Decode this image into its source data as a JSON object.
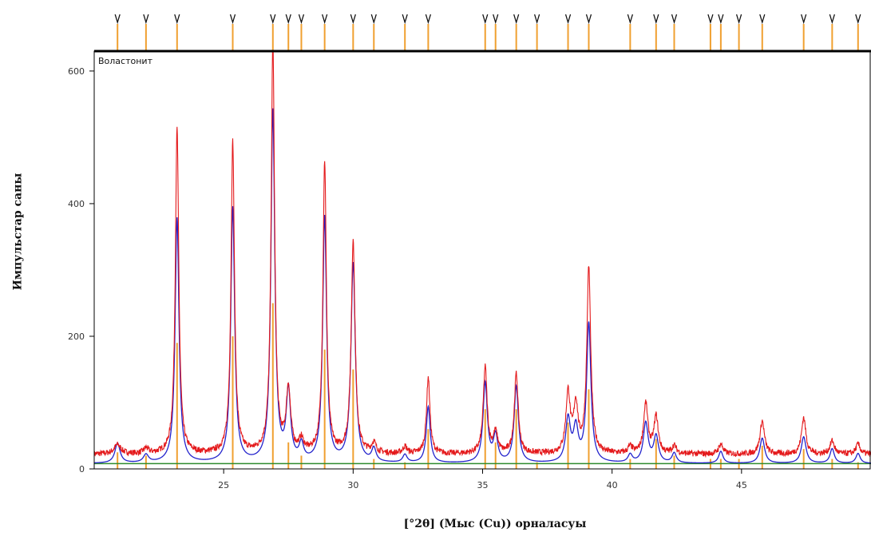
{
  "chart_data": {
    "type": "line",
    "title": "",
    "xlabel": "[°2θ] (Мыс (Cu)) орналасуы",
    "ylabel": "Импульстар саны",
    "phase_label": "Воластонит",
    "xlim": [
      20,
      50
    ],
    "ylim": [
      0,
      630
    ],
    "x_ticks": [
      25,
      30,
      35,
      40,
      45
    ],
    "y_ticks": [
      0,
      200,
      400,
      600
    ],
    "grid": false,
    "colors": {
      "observed": "#e41a1c",
      "calculated": "#2222cc",
      "background": "#2e8b2e",
      "reference_lines": "#f0a030",
      "frame": "#000000"
    },
    "series": [
      {
        "role": "observed",
        "background_level": 22,
        "peaks": [
          [
            20.9,
            14,
            0.15
          ],
          [
            22.0,
            8,
            0.1
          ],
          [
            23.2,
            490,
            0.08
          ],
          [
            25.35,
            470,
            0.08
          ],
          [
            26.9,
            620,
            0.08
          ],
          [
            27.5,
            95,
            0.1
          ],
          [
            28.0,
            18,
            0.1
          ],
          [
            28.9,
            440,
            0.08
          ],
          [
            30.0,
            320,
            0.09
          ],
          [
            30.8,
            15,
            0.1
          ],
          [
            32.0,
            10,
            0.1
          ],
          [
            32.9,
            115,
            0.08
          ],
          [
            35.1,
            130,
            0.09
          ],
          [
            35.5,
            30,
            0.1
          ],
          [
            36.3,
            120,
            0.09
          ],
          [
            38.3,
            90,
            0.1
          ],
          [
            38.6,
            70,
            0.1
          ],
          [
            39.1,
            280,
            0.09
          ],
          [
            40.7,
            10,
            0.1
          ],
          [
            41.3,
            75,
            0.1
          ],
          [
            41.7,
            55,
            0.1
          ],
          [
            42.4,
            12,
            0.1
          ],
          [
            44.2,
            15,
            0.1
          ],
          [
            45.8,
            50,
            0.1
          ],
          [
            47.4,
            55,
            0.1
          ],
          [
            48.5,
            20,
            0.1
          ],
          [
            49.5,
            15,
            0.1
          ]
        ]
      },
      {
        "role": "calculated",
        "background_level": 8,
        "peaks": [
          [
            20.9,
            30,
            0.12
          ],
          [
            22.0,
            12,
            0.12
          ],
          [
            23.2,
            370,
            0.09
          ],
          [
            25.35,
            385,
            0.09
          ],
          [
            26.9,
            530,
            0.09
          ],
          [
            27.5,
            105,
            0.1
          ],
          [
            28.0,
            25,
            0.1
          ],
          [
            28.9,
            370,
            0.09
          ],
          [
            30.0,
            300,
            0.1
          ],
          [
            30.8,
            20,
            0.1
          ],
          [
            32.0,
            12,
            0.1
          ],
          [
            32.9,
            85,
            0.09
          ],
          [
            35.1,
            120,
            0.1
          ],
          [
            35.5,
            40,
            0.1
          ],
          [
            36.3,
            115,
            0.1
          ],
          [
            38.3,
            65,
            0.11
          ],
          [
            38.6,
            50,
            0.11
          ],
          [
            39.1,
            210,
            0.1
          ],
          [
            40.7,
            12,
            0.1
          ],
          [
            41.3,
            60,
            0.11
          ],
          [
            41.7,
            40,
            0.11
          ],
          [
            42.4,
            15,
            0.1
          ],
          [
            44.2,
            18,
            0.1
          ],
          [
            45.8,
            38,
            0.11
          ],
          [
            47.4,
            40,
            0.11
          ],
          [
            48.5,
            22,
            0.1
          ],
          [
            49.5,
            15,
            0.1
          ]
        ]
      },
      {
        "role": "background",
        "y": 8
      }
    ],
    "reference_positions": [
      20.9,
      22.0,
      23.2,
      25.35,
      26.9,
      27.5,
      28.0,
      28.9,
      30.0,
      30.8,
      32.0,
      32.9,
      35.1,
      35.5,
      36.3,
      37.1,
      38.3,
      39.1,
      40.7,
      41.7,
      42.4,
      43.8,
      44.2,
      44.9,
      45.8,
      47.4,
      48.5,
      49.5
    ],
    "reference_heights": [
      25,
      20,
      190,
      200,
      250,
      40,
      20,
      180,
      150,
      15,
      10,
      60,
      90,
      40,
      90,
      10,
      70,
      120,
      15,
      45,
      20,
      15,
      15,
      15,
      35,
      30,
      15,
      10
    ]
  }
}
